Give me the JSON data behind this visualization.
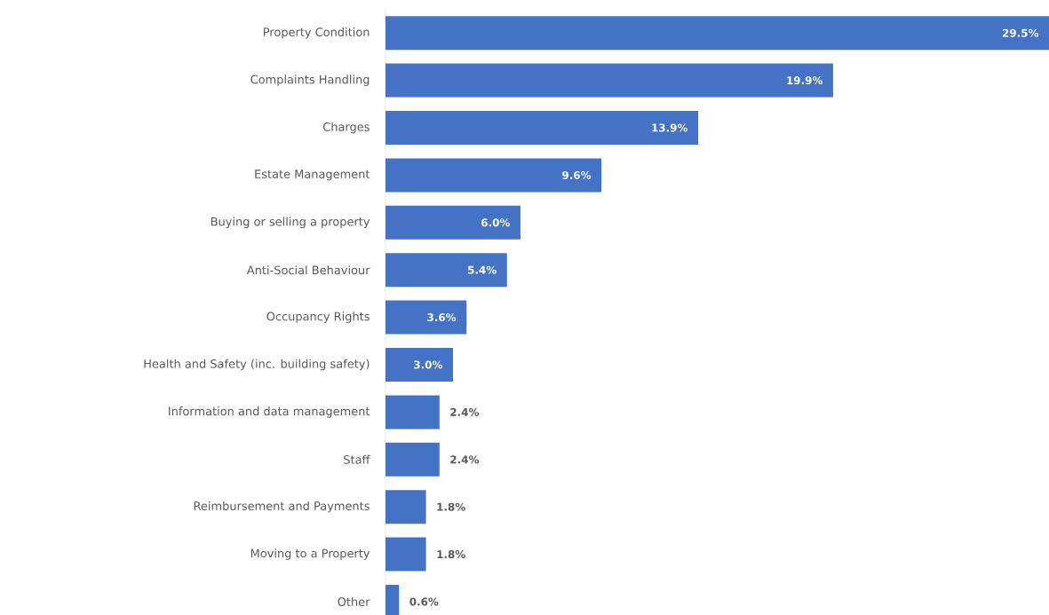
{
  "chart_data": {
    "type": "bar",
    "orientation": "horizontal",
    "color": "#4472c4",
    "categories": [
      "Property Condition",
      "Complaints Handling",
      "Charges",
      "Estate Management",
      "Buying or selling a property",
      "Anti-Social Behaviour",
      "Occupancy Rights",
      "Health and Safety (inc. building safety)",
      "Information and data management",
      "Staff",
      "Reimbursement and Payments",
      "Moving to a Property",
      "Other"
    ],
    "values": [
      29.5,
      19.9,
      13.9,
      9.6,
      6.0,
      5.4,
      3.6,
      3.0,
      2.4,
      2.4,
      1.8,
      1.8,
      0.6
    ],
    "value_labels": [
      "29.5%",
      "19.9%",
      "13.9%",
      "9.6%",
      "6.0%",
      "5.4%",
      "3.6%",
      "3.0%",
      "2.4%",
      "2.4%",
      "1.8%",
      "1.8%",
      "0.6%"
    ]
  }
}
